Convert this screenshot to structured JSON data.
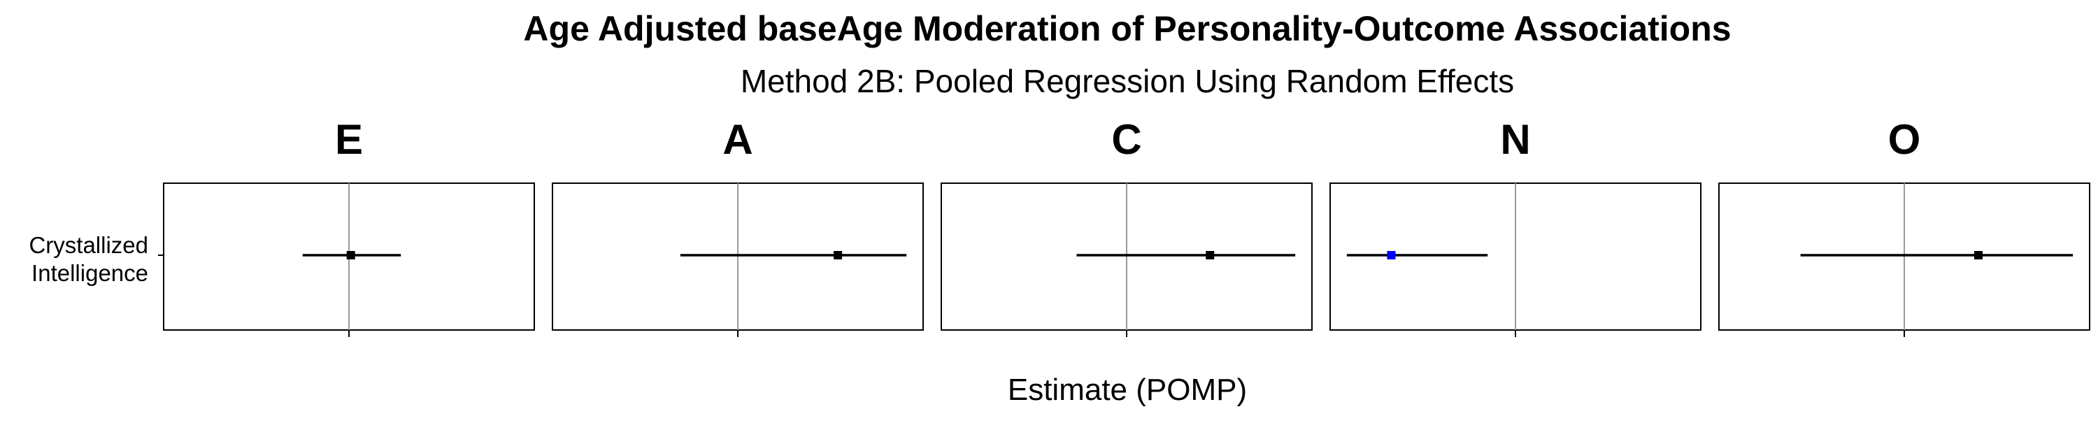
{
  "chart_data": {
    "type": "scatter",
    "title": "Age Adjusted baseAge Moderation of Personality-Outcome Associations",
    "subtitle": "Method 2B: Pooled Regression Using Random Effects",
    "xlabel": "Estimate (POMP)",
    "ylabel": "",
    "category_labels": [
      "Crystallized",
      "Intelligence"
    ],
    "grid": false,
    "xlim": [
      -1.0,
      1.0
    ],
    "reference_line": 0,
    "colors": {
      "significant": "#0000ff",
      "default": "#000000",
      "reference": "#999999"
    },
    "panels": [
      {
        "name": "E",
        "estimate": 0.01,
        "ci_low": -0.25,
        "ci_high": 0.28,
        "significant": false
      },
      {
        "name": "A",
        "estimate": 0.54,
        "ci_low": -0.31,
        "ci_high": 0.91,
        "significant": false
      },
      {
        "name": "C",
        "estimate": 0.45,
        "ci_low": -0.27,
        "ci_high": 0.91,
        "significant": false
      },
      {
        "name": "N",
        "estimate": -0.67,
        "ci_low": -0.91,
        "ci_high": -0.15,
        "significant": true
      },
      {
        "name": "O",
        "estimate": 0.4,
        "ci_low": -0.56,
        "ci_high": 0.91,
        "significant": false
      }
    ]
  }
}
